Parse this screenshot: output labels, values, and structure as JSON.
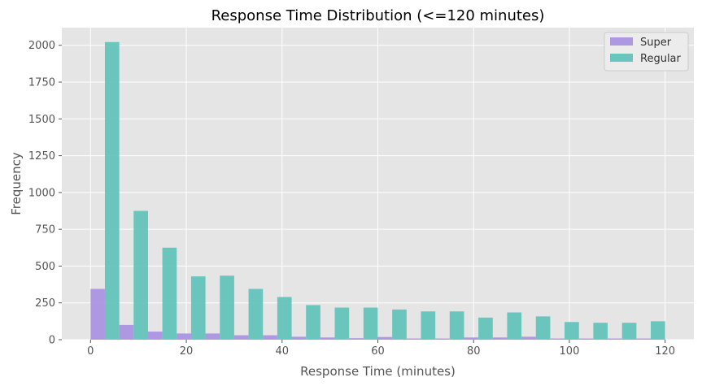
{
  "chart_data": {
    "type": "bar",
    "title": "Response Time Distribution (<=120 minutes)",
    "xlabel": "Response Time (minutes)",
    "ylabel": "Frequency",
    "xlim": [
      -6,
      126
    ],
    "ylim": [
      0,
      2120
    ],
    "x_ticks": [
      0,
      20,
      40,
      60,
      80,
      100,
      120
    ],
    "y_ticks": [
      0,
      250,
      500,
      750,
      1000,
      1250,
      1500,
      1750,
      2000
    ],
    "bin_width": 6,
    "bin_starts": [
      0,
      6,
      12,
      18,
      24,
      30,
      36,
      42,
      48,
      54,
      60,
      66,
      72,
      78,
      84,
      90,
      96,
      102,
      108,
      114
    ],
    "grid": true,
    "legend_position": "top-right",
    "series": [
      {
        "name": "Super",
        "color": "#a78fe0",
        "values": [
          345,
          100,
          55,
          42,
          42,
          30,
          30,
          20,
          15,
          10,
          18,
          8,
          8,
          15,
          15,
          20,
          8,
          8,
          8,
          8
        ]
      },
      {
        "name": "Regular",
        "color": "#5cc1b8",
        "values": [
          2022,
          875,
          625,
          430,
          435,
          345,
          290,
          235,
          218,
          218,
          205,
          192,
          192,
          150,
          185,
          158,
          120,
          115,
          115,
          125
        ]
      }
    ]
  }
}
